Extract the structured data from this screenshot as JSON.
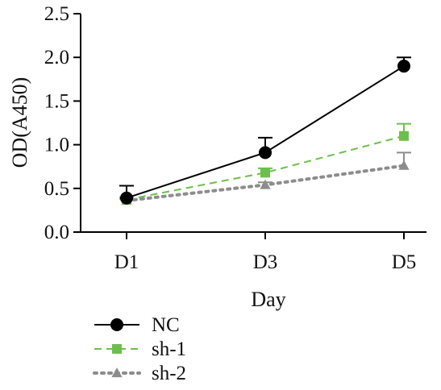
{
  "chart_data": {
    "type": "line",
    "title": "",
    "xlabel": "Day",
    "ylabel": "OD(A450)",
    "categories": [
      "D1",
      "D3",
      "D5"
    ],
    "ylim": [
      0,
      2.5
    ],
    "yticks": [
      "0.0",
      "0.5",
      "1.0",
      "1.5",
      "2.0",
      "2.5"
    ],
    "grid": false,
    "legend_position": "bottom-left",
    "series": [
      {
        "name": "NC",
        "values": [
          0.39,
          0.91,
          1.9
        ],
        "errors": [
          0.14,
          0.17,
          0.1
        ],
        "color": "#000000",
        "marker": "circle",
        "line_style": "solid"
      },
      {
        "name": "sh-1",
        "values": [
          0.37,
          0.68,
          1.1
        ],
        "errors": [
          0.03,
          0.05,
          0.14
        ],
        "color": "#6dbf4b",
        "marker": "square",
        "line_style": "dashed"
      },
      {
        "name": "sh-2",
        "values": [
          0.36,
          0.54,
          0.76
        ],
        "errors": [
          0.02,
          0.03,
          0.15
        ],
        "color": "#8c8c8c",
        "marker": "triangle",
        "line_style": "dotted"
      }
    ]
  }
}
